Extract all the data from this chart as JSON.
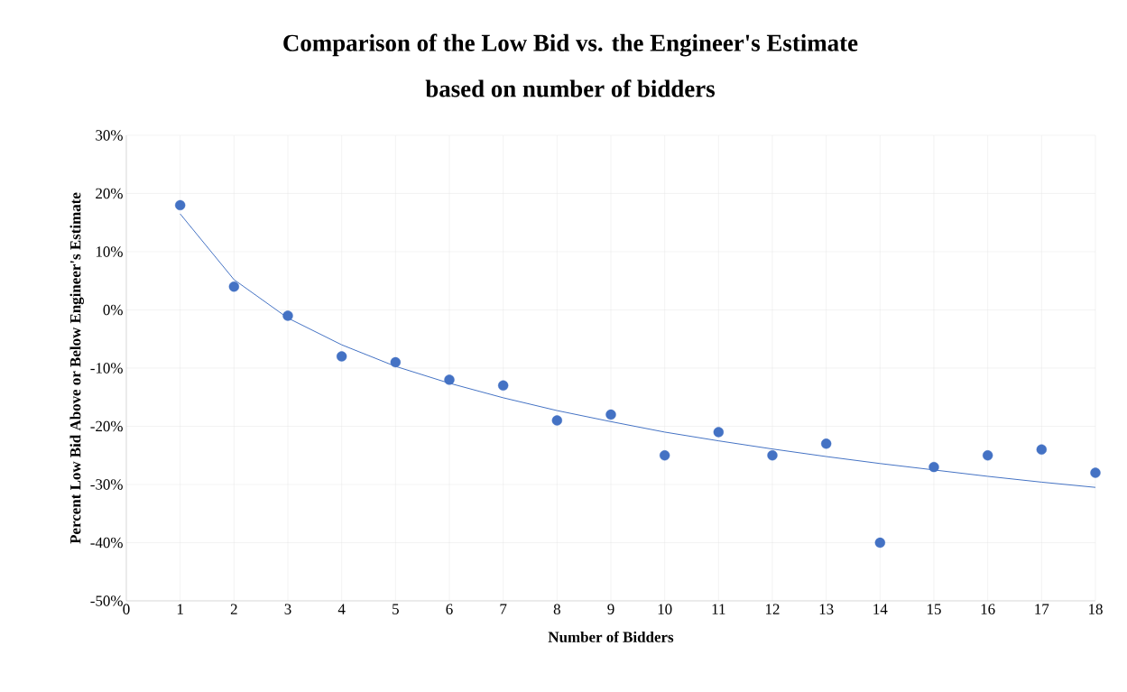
{
  "chart_data": {
    "type": "scatter",
    "title": "Comparison of the Low Bid vs. the Engineer's Estimate",
    "subtitle": "based on number of bidders",
    "xlabel": "Number of Bidders",
    "ylabel": "Percent Low Bid Above or Below Engineer's Estimate",
    "series": [
      {
        "color": "#4472c4",
        "marker": "circle",
        "x": [
          1,
          2,
          3,
          4,
          5,
          6,
          7,
          8,
          9,
          10,
          11,
          12,
          13,
          14,
          15,
          16,
          17,
          18
        ],
        "values": [
          18,
          4,
          -1,
          -8,
          -9,
          -12,
          -13,
          -19,
          -18,
          -25,
          -21,
          -25,
          -23,
          -40,
          -27,
          -25,
          -24,
          -28
        ]
      },
      {
        "type": "line",
        "color": "#4472c4",
        "marker": "none",
        "x": [
          1,
          2,
          3,
          4,
          5,
          6,
          7,
          8,
          9,
          10,
          11,
          12,
          13,
          14,
          15,
          16,
          17,
          18
        ],
        "values": [
          16.5,
          5.2,
          -1.4,
          -6,
          -9.7,
          -12.6,
          -15.1,
          -17.3,
          -19.2,
          -21,
          -22.5,
          -23.9,
          -25.2,
          -26.4,
          -27.5,
          -28.6,
          -29.6,
          -30.5
        ]
      }
    ],
    "xlim": [
      0,
      18
    ],
    "xticks": [
      0,
      1,
      2,
      3,
      4,
      5,
      6,
      7,
      8,
      9,
      10,
      11,
      12,
      13,
      14,
      15,
      16,
      17,
      18
    ],
    "ylim": [
      -50,
      30
    ],
    "yticks": [
      {
        "value": -50,
        "label": "-50%"
      },
      {
        "value": -40,
        "label": "-40%"
      },
      {
        "value": -30,
        "label": "-30%"
      },
      {
        "value": -20,
        "label": "-20%"
      },
      {
        "value": -10,
        "label": "-10%"
      },
      {
        "value": 0,
        "label": "0%"
      },
      {
        "value": 10,
        "label": "10%"
      },
      {
        "value": 20,
        "label": "20%"
      },
      {
        "value": 30,
        "label": "30%"
      }
    ],
    "grid": true
  }
}
